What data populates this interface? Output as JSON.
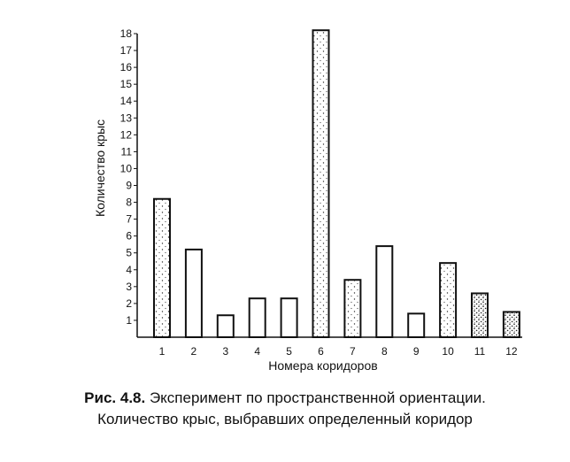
{
  "chart_data": {
    "type": "bar",
    "categories": [
      "1",
      "2",
      "3",
      "4",
      "5",
      "6",
      "7",
      "8",
      "9",
      "10",
      "11",
      "12"
    ],
    "values": [
      8.2,
      5.2,
      1.3,
      2.3,
      2.3,
      18.2,
      3.4,
      5.4,
      1.4,
      4.4,
      2.6,
      1.5
    ],
    "fill": [
      "stippled",
      "white",
      "white",
      "white",
      "white",
      "stippled",
      "stippled",
      "white",
      "white",
      "stippled",
      "dark-stippled",
      "dark-stippled"
    ],
    "xlabel": "Номера коридоров",
    "ylabel": "Количество крыс",
    "ylim": [
      0,
      18
    ],
    "yticks": [
      1,
      2,
      3,
      4,
      5,
      6,
      7,
      8,
      9,
      10,
      11,
      12,
      13,
      14,
      15,
      16,
      17,
      18
    ],
    "grid": false
  },
  "caption": {
    "label": "Рис. 4.8.",
    "text": " Эксперимент по пространственной ориентации.",
    "line2": "Количество крыс, выбравших определенный коридор"
  }
}
